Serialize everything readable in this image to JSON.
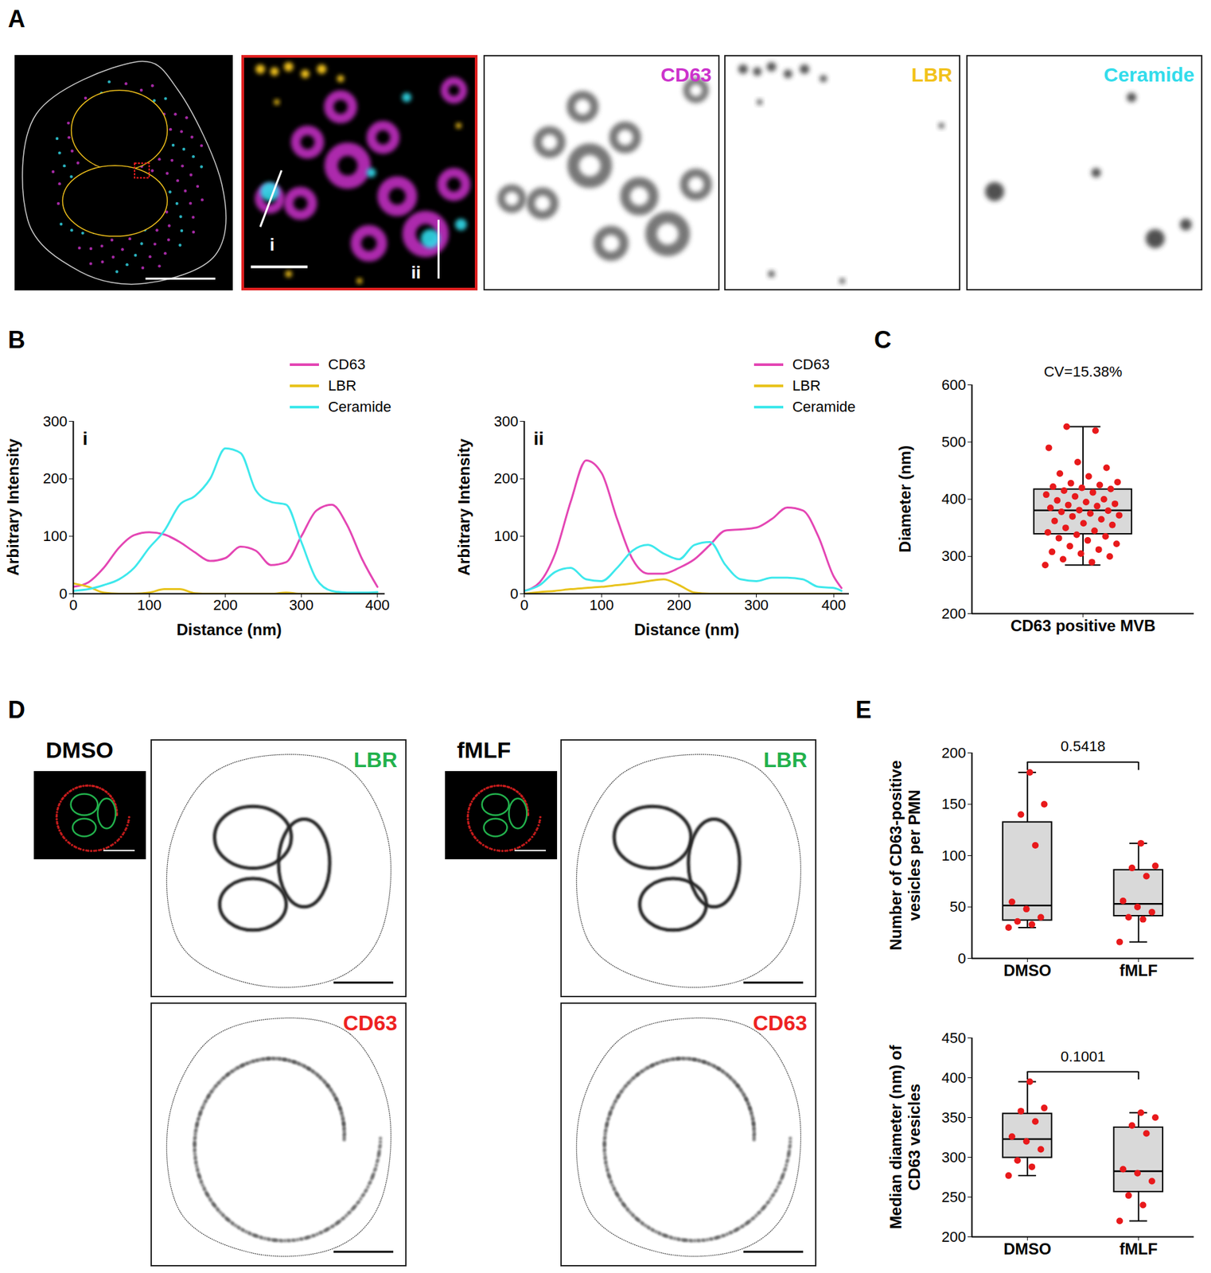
{
  "panel_labels": [
    "A",
    "B",
    "C",
    "D",
    "E"
  ],
  "images": {
    "A": {
      "channels": [
        {
          "label": "CD63",
          "color": "#cc33cc"
        },
        {
          "label": "LBR",
          "color": "#f2c21b"
        },
        {
          "label": "Ceramide",
          "color": "#33dceb"
        }
      ],
      "line_labels": [
        "i",
        "ii"
      ]
    },
    "D": {
      "conditions": [
        {
          "label": "DMSO"
        },
        {
          "label": "fMLF"
        }
      ],
      "channels": [
        {
          "label": "LBR",
          "color": "#22b14c"
        },
        {
          "label": "CD63",
          "color": "#ee2222"
        }
      ]
    }
  },
  "chart_data": [
    {
      "type": "line",
      "title": "i",
      "x": [
        0,
        20,
        40,
        60,
        80,
        100,
        120,
        140,
        160,
        180,
        200,
        220,
        240,
        260,
        280,
        300,
        320,
        340,
        360,
        380,
        400
      ],
      "series": [
        {
          "name": "CD63",
          "color": "#e446b4",
          "values": [
            12,
            20,
            45,
            80,
            102,
            107,
            103,
            90,
            72,
            57,
            62,
            82,
            75,
            50,
            55,
            100,
            145,
            155,
            120,
            60,
            12
          ]
        },
        {
          "name": "LBR",
          "color": "#e8c31c",
          "values": [
            18,
            12,
            2,
            0,
            0,
            2,
            8,
            8,
            1,
            0,
            0,
            0,
            0,
            0,
            2,
            0,
            0,
            0,
            0,
            0,
            0
          ]
        },
        {
          "name": "Ceramide",
          "color": "#3ee8ec",
          "values": [
            5,
            8,
            15,
            25,
            45,
            80,
            110,
            155,
            170,
            200,
            253,
            245,
            180,
            160,
            155,
            90,
            25,
            5,
            2,
            2,
            3
          ]
        }
      ],
      "xlabel": "Distance (nm)",
      "ylabel": "Arbitrary Intensity",
      "xlim": [
        0,
        410
      ],
      "xticks": [
        0,
        100,
        200,
        300,
        400
      ],
      "ylim": [
        0,
        300
      ],
      "yticks": [
        0,
        100,
        200,
        300
      ],
      "legend": "top-right"
    },
    {
      "type": "line",
      "title": "ii",
      "x": [
        0,
        20,
        40,
        60,
        80,
        100,
        120,
        140,
        160,
        180,
        200,
        220,
        240,
        260,
        280,
        300,
        320,
        340,
        360,
        380,
        400,
        410
      ],
      "series": [
        {
          "name": "CD63",
          "color": "#e446b4",
          "values": [
            5,
            20,
            70,
            160,
            232,
            210,
            130,
            60,
            35,
            35,
            45,
            60,
            85,
            110,
            112,
            115,
            130,
            150,
            145,
            100,
            30,
            10
          ]
        },
        {
          "name": "LBR",
          "color": "#e8c31c",
          "values": [
            0,
            3,
            5,
            8,
            10,
            12,
            15,
            18,
            22,
            25,
            15,
            2,
            0,
            0,
            0,
            0,
            0,
            0,
            0,
            0,
            0,
            0
          ]
        },
        {
          "name": "Ceramide",
          "color": "#3ee8ec",
          "values": [
            5,
            15,
            38,
            45,
            25,
            22,
            45,
            75,
            85,
            70,
            60,
            85,
            90,
            50,
            25,
            22,
            28,
            28,
            25,
            12,
            10,
            5
          ]
        }
      ],
      "xlabel": "Distance (nm)",
      "ylabel": "Arbitrary Intensity",
      "xlim": [
        0,
        420
      ],
      "xticks": [
        0,
        100,
        200,
        300,
        400
      ],
      "ylim": [
        0,
        300
      ],
      "yticks": [
        0,
        100,
        200,
        300
      ],
      "legend": "top-right"
    },
    {
      "type": "box",
      "categories": [
        "CD63 positive MVB"
      ],
      "values": [
        [
          285,
          290,
          295,
          300,
          305,
          308,
          312,
          318,
          322,
          328,
          332,
          335,
          338,
          342,
          345,
          350,
          355,
          358,
          362,
          365,
          370,
          372,
          375,
          378,
          380,
          381,
          385,
          388,
          390,
          392,
          395,
          398,
          400,
          405,
          408,
          412,
          415,
          418,
          420,
          422,
          425,
          428,
          430,
          440,
          445,
          455,
          465,
          490,
          520,
          527
        ]
      ],
      "ylabel": "Diameter (nm)",
      "ylim": [
        200,
        600
      ],
      "yticks": [
        200,
        300,
        400,
        500,
        600
      ],
      "annotations": [
        "CV=15.38%"
      ],
      "color": "#d9d9d9"
    },
    {
      "type": "box",
      "categories": [
        "DMSO",
        "fMLF"
      ],
      "values": [
        [
          30,
          33,
          36,
          40,
          48,
          55,
          110,
          140,
          150,
          181
        ],
        [
          16,
          38,
          40,
          45,
          50,
          56,
          80,
          88,
          90,
          112
        ]
      ],
      "ylabel": "Number of CD63-positive vesicles per PMN",
      "ylim": [
        0,
        200
      ],
      "yticks": [
        0,
        50,
        100,
        150,
        200
      ],
      "annotations": [
        "0.5418"
      ],
      "color": "#d9d9d9"
    },
    {
      "type": "box",
      "categories": [
        "DMSO",
        "fMLF"
      ],
      "values": [
        [
          277,
          288,
          296,
          310,
          320,
          326,
          345,
          358,
          362,
          395
        ],
        [
          220,
          240,
          252,
          270,
          280,
          285,
          330,
          340,
          350,
          356
        ]
      ],
      "ylabel": "Median diameter (nm) of CD63 vesicles",
      "ylim": [
        200,
        450
      ],
      "yticks": [
        200,
        250,
        300,
        350,
        400,
        450
      ],
      "annotations": [
        "0.1001"
      ],
      "color": "#d9d9d9"
    }
  ]
}
